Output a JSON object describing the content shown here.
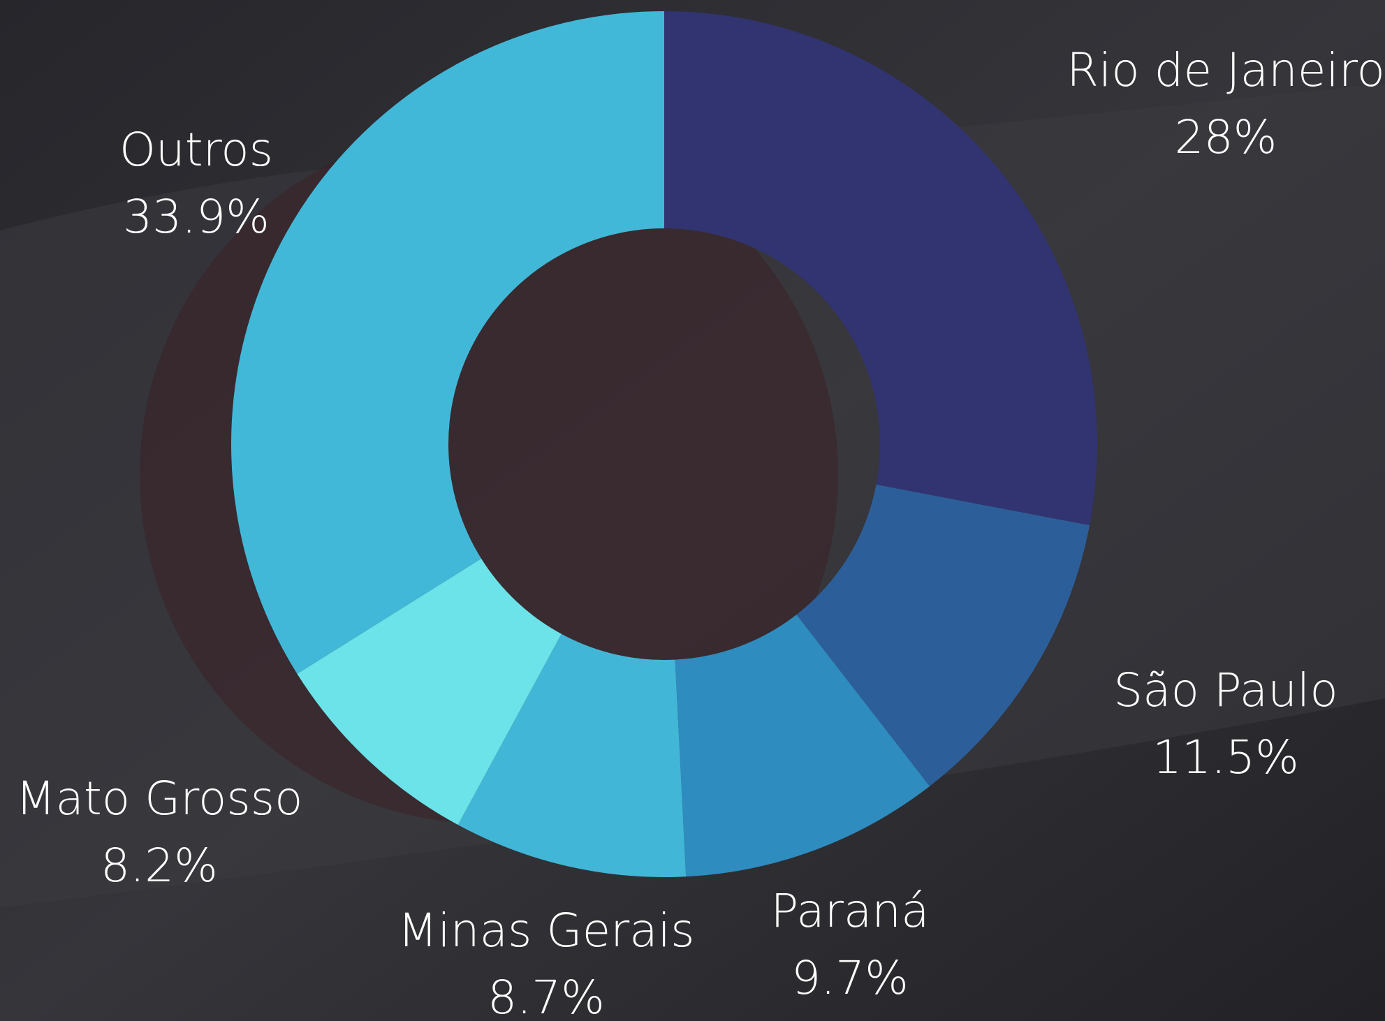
{
  "chart_data": {
    "type": "donut",
    "categories": [
      "Rio de Janeiro",
      "São Paulo",
      "Paraná",
      "Minas Gerais",
      "Mato Grosso",
      "Outros"
    ],
    "values": [
      28,
      11.5,
      9.7,
      8.7,
      8.2,
      33.9
    ],
    "value_labels": [
      "28%",
      "11.5%",
      "9.7%",
      "8.7%",
      "8.2%",
      "33.9%"
    ],
    "colors": [
      "#313470",
      "#2c5f9a",
      "#2e8cbf",
      "#42b6d6",
      "#6be3e8",
      "#42b8d8"
    ]
  }
}
